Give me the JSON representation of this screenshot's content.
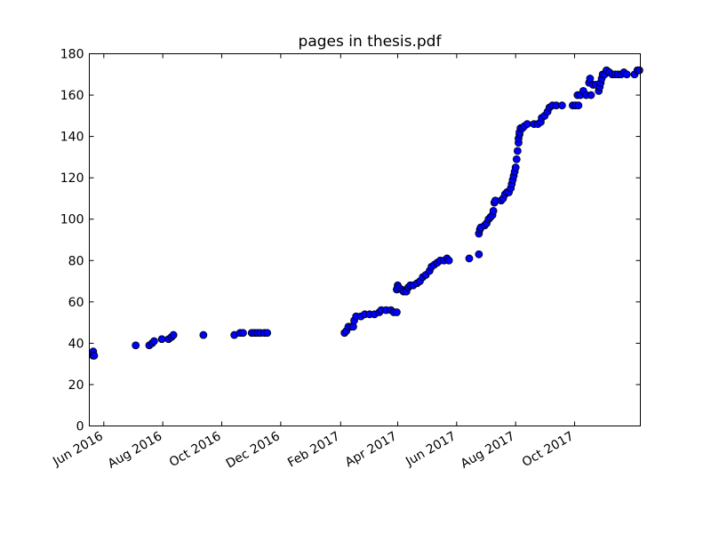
{
  "chart_data": {
    "type": "scatter",
    "title": "pages in thesis.pdf",
    "xlabel": "",
    "ylabel": "",
    "xlim": [
      "2016-05-17",
      "2017-12-08"
    ],
    "ylim": [
      0,
      180
    ],
    "grid": false,
    "x_ticks": [
      {
        "date": "2016-06-01",
        "label": "Jun 2016"
      },
      {
        "date": "2016-08-01",
        "label": "Aug 2016"
      },
      {
        "date": "2016-10-01",
        "label": "Oct 2016"
      },
      {
        "date": "2016-12-01",
        "label": "Dec 2016"
      },
      {
        "date": "2017-02-01",
        "label": "Feb 2017"
      },
      {
        "date": "2017-04-01",
        "label": "Apr 2017"
      },
      {
        "date": "2017-06-01",
        "label": "Jun 2017"
      },
      {
        "date": "2017-08-01",
        "label": "Aug 2017"
      },
      {
        "date": "2017-10-01",
        "label": "Oct 2017"
      }
    ],
    "y_ticks": [
      0,
      20,
      40,
      60,
      80,
      100,
      120,
      140,
      160,
      180
    ],
    "series": [
      {
        "color": "#0000ff",
        "points": [
          [
            "2016-05-21",
            34
          ],
          [
            "2016-05-21",
            36
          ],
          [
            "2016-05-22",
            34
          ],
          [
            "2016-07-04",
            39
          ],
          [
            "2016-07-18",
            39
          ],
          [
            "2016-07-21",
            40
          ],
          [
            "2016-07-23",
            41
          ],
          [
            "2016-07-31",
            42
          ],
          [
            "2016-08-07",
            42
          ],
          [
            "2016-08-10",
            43
          ],
          [
            "2016-08-12",
            44
          ],
          [
            "2016-09-12",
            44
          ],
          [
            "2016-10-14",
            44
          ],
          [
            "2016-10-20",
            45
          ],
          [
            "2016-10-23",
            45
          ],
          [
            "2016-11-01",
            45
          ],
          [
            "2016-11-04",
            45
          ],
          [
            "2016-11-07",
            45
          ],
          [
            "2016-11-10",
            45
          ],
          [
            "2016-11-14",
            45
          ],
          [
            "2016-11-17",
            45
          ],
          [
            "2017-02-05",
            45
          ],
          [
            "2017-02-07",
            46
          ],
          [
            "2017-02-09",
            48
          ],
          [
            "2017-02-12",
            48
          ],
          [
            "2017-02-14",
            48
          ],
          [
            "2017-02-15",
            51
          ],
          [
            "2017-02-17",
            53
          ],
          [
            "2017-02-22",
            53
          ],
          [
            "2017-02-26",
            54
          ],
          [
            "2017-03-03",
            54
          ],
          [
            "2017-03-08",
            54
          ],
          [
            "2017-03-13",
            55
          ],
          [
            "2017-03-15",
            56
          ],
          [
            "2017-03-20",
            56
          ],
          [
            "2017-03-25",
            56
          ],
          [
            "2017-03-28",
            55
          ],
          [
            "2017-03-31",
            55
          ],
          [
            "2017-03-31",
            66
          ],
          [
            "2017-04-01",
            68
          ],
          [
            "2017-04-02",
            67
          ],
          [
            "2017-04-05",
            66
          ],
          [
            "2017-04-07",
            65
          ],
          [
            "2017-04-10",
            65
          ],
          [
            "2017-04-12",
            67
          ],
          [
            "2017-04-14",
            68
          ],
          [
            "2017-04-17",
            68
          ],
          [
            "2017-04-21",
            69
          ],
          [
            "2017-04-24",
            70
          ],
          [
            "2017-04-27",
            72
          ],
          [
            "2017-04-30",
            73
          ],
          [
            "2017-05-04",
            75
          ],
          [
            "2017-05-06",
            77
          ],
          [
            "2017-05-09",
            78
          ],
          [
            "2017-05-12",
            79
          ],
          [
            "2017-05-15",
            80
          ],
          [
            "2017-05-19",
            80
          ],
          [
            "2017-05-22",
            81
          ],
          [
            "2017-05-24",
            80
          ],
          [
            "2017-06-14",
            81
          ],
          [
            "2017-06-24",
            83
          ],
          [
            "2017-06-24",
            93
          ],
          [
            "2017-06-25",
            95
          ],
          [
            "2017-06-26",
            96
          ],
          [
            "2017-06-30",
            97
          ],
          [
            "2017-07-02",
            98
          ],
          [
            "2017-07-04",
            100
          ],
          [
            "2017-07-06",
            101
          ],
          [
            "2017-07-08",
            102
          ],
          [
            "2017-07-09",
            104
          ],
          [
            "2017-07-10",
            108
          ],
          [
            "2017-07-11",
            109
          ],
          [
            "2017-07-17",
            109
          ],
          [
            "2017-07-19",
            110
          ],
          [
            "2017-07-21",
            112
          ],
          [
            "2017-07-23",
            113
          ],
          [
            "2017-07-25",
            113
          ],
          [
            "2017-07-27",
            115
          ],
          [
            "2017-07-28",
            117
          ],
          [
            "2017-07-29",
            119
          ],
          [
            "2017-07-30",
            121
          ],
          [
            "2017-07-31",
            123
          ],
          [
            "2017-08-01",
            125
          ],
          [
            "2017-08-02",
            129
          ],
          [
            "2017-08-03",
            133
          ],
          [
            "2017-08-04",
            137
          ],
          [
            "2017-08-04",
            139
          ],
          [
            "2017-08-05",
            141
          ],
          [
            "2017-08-05",
            142
          ],
          [
            "2017-08-06",
            144
          ],
          [
            "2017-08-08",
            144
          ],
          [
            "2017-08-10",
            145
          ],
          [
            "2017-08-13",
            146
          ],
          [
            "2017-08-20",
            146
          ],
          [
            "2017-08-24",
            146
          ],
          [
            "2017-08-27",
            147
          ],
          [
            "2017-08-28",
            149
          ],
          [
            "2017-08-31",
            150
          ],
          [
            "2017-09-03",
            152
          ],
          [
            "2017-09-05",
            154
          ],
          [
            "2017-09-08",
            155
          ],
          [
            "2017-09-12",
            155
          ],
          [
            "2017-09-18",
            155
          ],
          [
            "2017-09-29",
            155
          ],
          [
            "2017-10-02",
            155
          ],
          [
            "2017-10-05",
            155
          ],
          [
            "2017-10-04",
            160
          ],
          [
            "2017-10-07",
            160
          ],
          [
            "2017-10-10",
            162
          ],
          [
            "2017-10-13",
            160
          ],
          [
            "2017-10-18",
            160
          ],
          [
            "2017-10-16",
            166
          ],
          [
            "2017-10-17",
            168
          ],
          [
            "2017-10-20",
            165
          ],
          [
            "2017-10-23",
            165
          ],
          [
            "2017-10-26",
            162
          ],
          [
            "2017-10-27",
            164
          ],
          [
            "2017-10-28",
            166
          ],
          [
            "2017-10-29",
            168
          ],
          [
            "2017-10-30",
            170
          ],
          [
            "2017-11-01",
            170
          ],
          [
            "2017-11-03",
            172
          ],
          [
            "2017-11-06",
            171
          ],
          [
            "2017-11-09",
            170
          ],
          [
            "2017-11-12",
            170
          ],
          [
            "2017-11-15",
            170
          ],
          [
            "2017-11-18",
            170
          ],
          [
            "2017-11-21",
            171
          ],
          [
            "2017-11-24",
            170
          ],
          [
            "2017-12-02",
            170
          ],
          [
            "2017-12-05",
            172
          ],
          [
            "2017-12-07",
            172
          ]
        ]
      }
    ]
  }
}
